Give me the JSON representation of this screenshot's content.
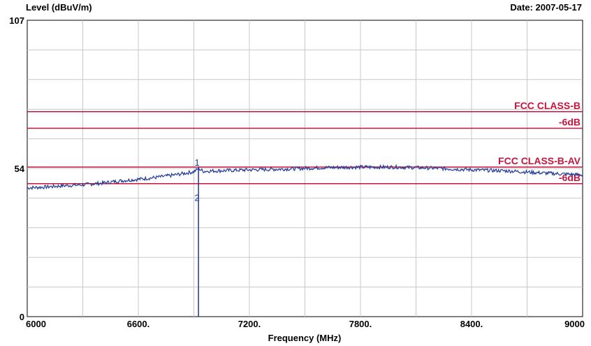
{
  "header": {
    "ylabel": "Level (dBuV/m)",
    "date": "Date: 2007-05-17"
  },
  "chart_data": {
    "type": "line",
    "title": "",
    "xlabel": "Frequency (MHz)",
    "ylabel": "Level (dBuV/m)",
    "xlim": [
      6000,
      9000
    ],
    "ylim": [
      0,
      107
    ],
    "x_tick_labels": [
      "6000",
      "6600.",
      "7200.",
      "7800.",
      "8400.",
      "9000"
    ],
    "y_tick_labels": [
      "107",
      "54",
      "0"
    ],
    "grid": true,
    "limit_lines": [
      {
        "label": "FCC CLASS-B",
        "y": 74,
        "color": "#c8143c"
      },
      {
        "label": "-6dB",
        "y": 68,
        "color": "#c8143c"
      },
      {
        "label": "FCC CLASS-B-AV",
        "y": 54,
        "color": "#c8143c"
      },
      {
        "label": "-6dB",
        "y": 48,
        "color": "#c8143c"
      }
    ],
    "markers": [
      {
        "label": "1",
        "x": 6925,
        "y": 53.5
      },
      {
        "label": "2",
        "x": 6925,
        "y": 43
      }
    ],
    "series": [
      {
        "color": "#1f3a9a",
        "points": [
          [
            6000,
            46.5
          ],
          [
            6100,
            46.8
          ],
          [
            6200,
            47.3
          ],
          [
            6300,
            47.6
          ],
          [
            6400,
            48.2
          ],
          [
            6500,
            49.0
          ],
          [
            6600,
            49.6
          ],
          [
            6700,
            50.3
          ],
          [
            6800,
            51.2
          ],
          [
            6900,
            52.3
          ],
          [
            6925,
            53.5
          ],
          [
            6950,
            52.5
          ],
          [
            7000,
            52.6
          ],
          [
            7100,
            52.8
          ],
          [
            7200,
            53.0
          ],
          [
            7400,
            53.3
          ],
          [
            7600,
            53.8
          ],
          [
            7800,
            54.0
          ],
          [
            8000,
            54.0
          ],
          [
            8200,
            53.6
          ],
          [
            8400,
            53.0
          ],
          [
            8600,
            52.6
          ],
          [
            8800,
            51.8
          ],
          [
            8900,
            51.5
          ],
          [
            9000,
            51.2
          ]
        ]
      }
    ]
  }
}
